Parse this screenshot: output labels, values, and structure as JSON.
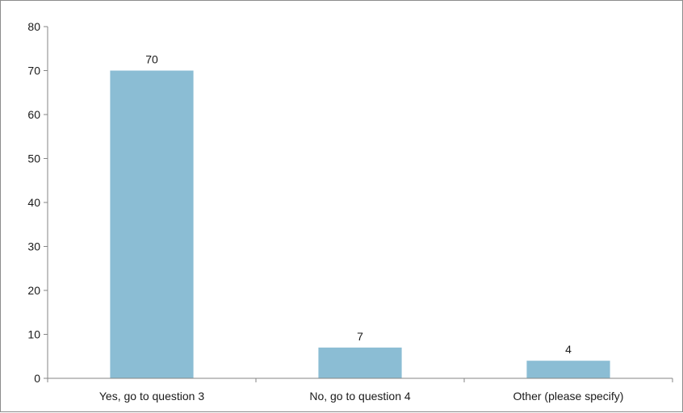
{
  "chart_data": {
    "type": "bar",
    "title": "",
    "xlabel": "",
    "ylabel": "",
    "categories": [
      "Yes, go to question 3",
      "No, go to question 4",
      "Other (please specify)"
    ],
    "values": [
      70,
      7,
      4
    ],
    "data_labels": [
      "70",
      "7",
      "4"
    ],
    "ylim": [
      0,
      80
    ],
    "yticks": [
      0,
      10,
      20,
      30,
      40,
      50,
      60,
      70,
      80
    ],
    "grid": false,
    "legend": "none",
    "bar_color": "#8bbdd4"
  }
}
